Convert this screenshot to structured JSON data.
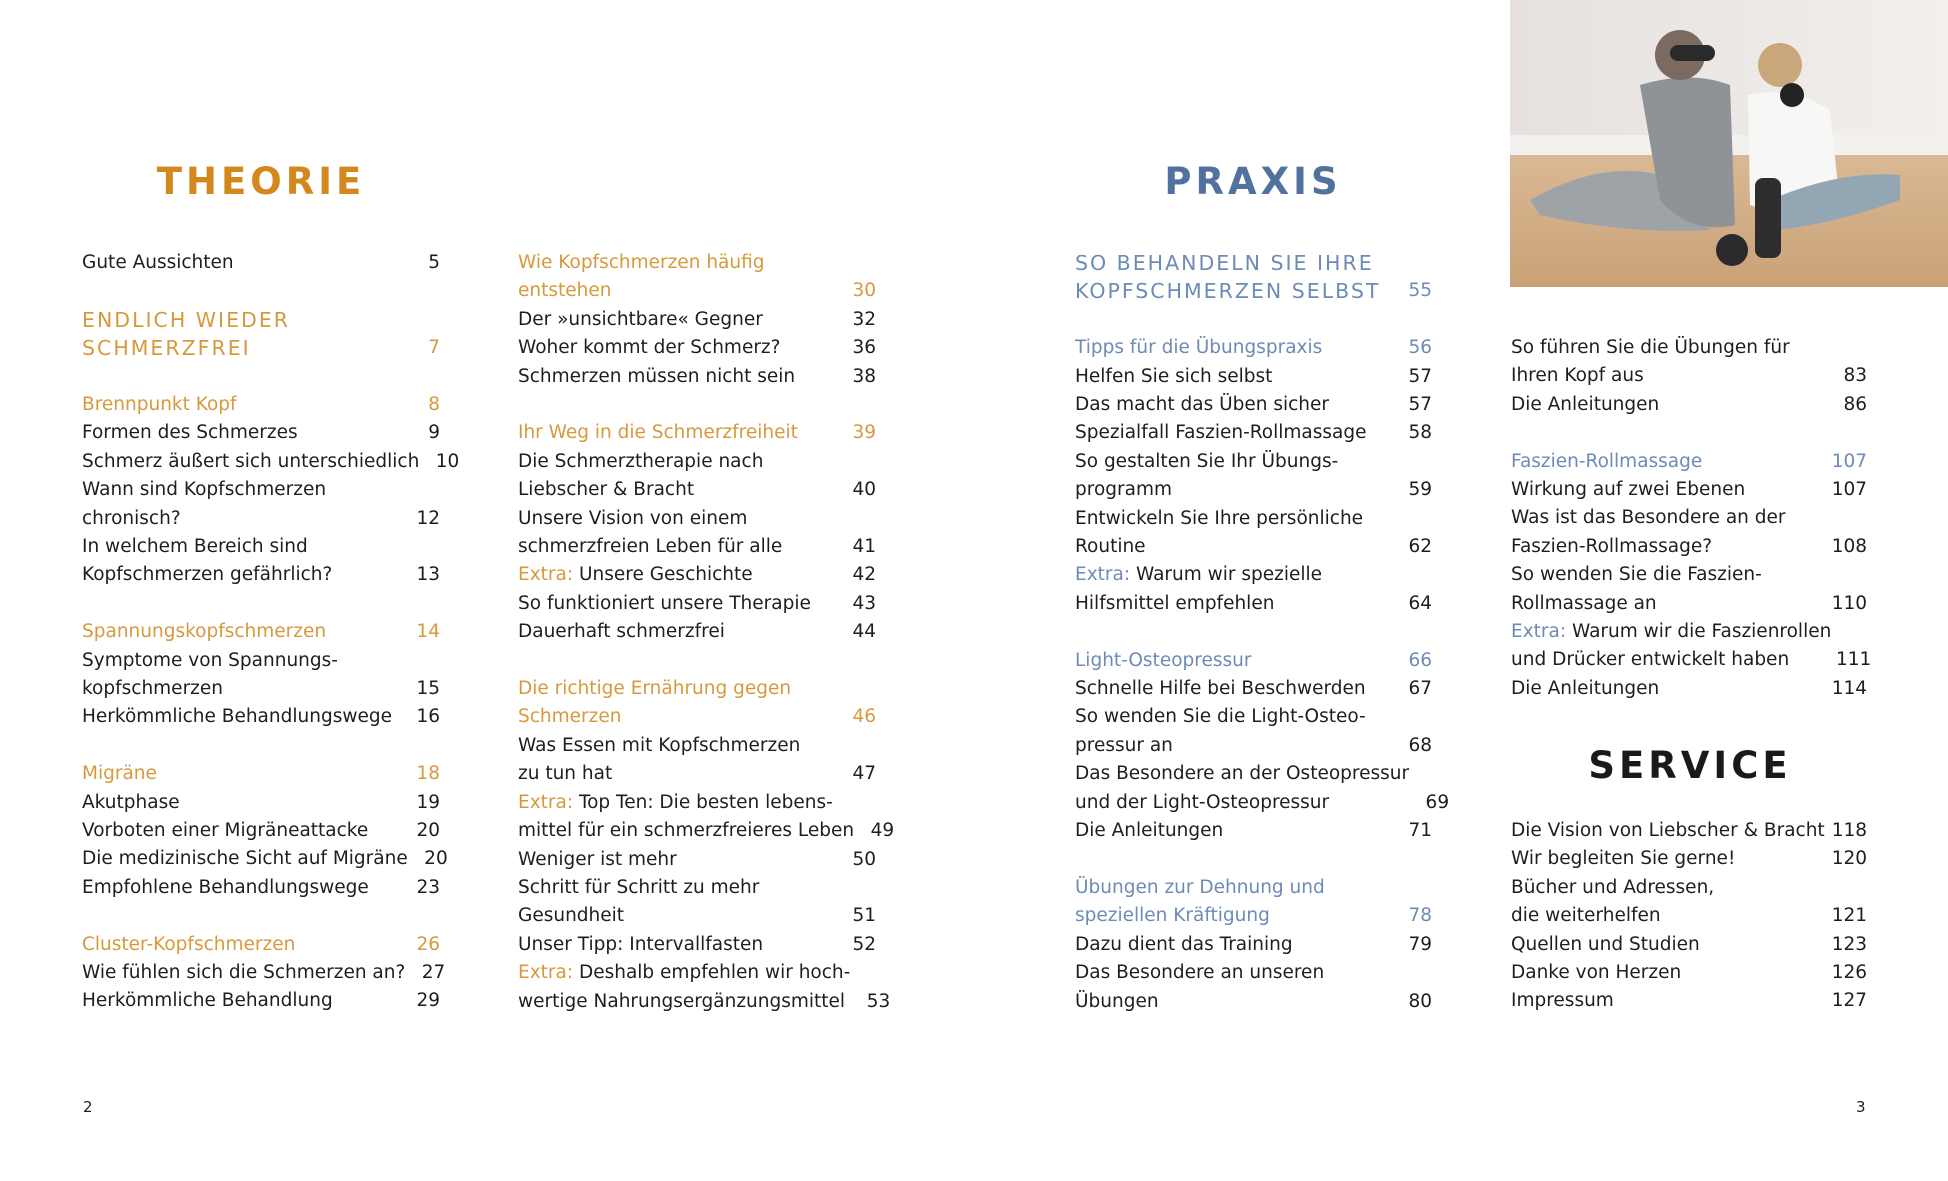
{
  "colors": {
    "theorie": "#d4871c",
    "theorie_section": "#d6993c",
    "praxis": "#51719f",
    "praxis_section": "#6c8bb6",
    "text": "#1e1e1e",
    "service": "#1a1a1a"
  },
  "headings": {
    "theorie": "THEORIE",
    "praxis": "PRAXIS",
    "service": "SERVICE"
  },
  "photo": {
    "icon": "photo-people-fascia-rollers"
  },
  "page_numbers": {
    "left": "2",
    "right": "3"
  },
  "columns": [
    {
      "theme": "theorie",
      "groups": [
        [
          {
            "type": "item",
            "lines": [
              "Gute Aussichten"
            ],
            "page": "5"
          }
        ],
        [
          {
            "type": "chapter",
            "lines": [
              "ENDLICH WIEDER",
              "SCHMERZFREI"
            ],
            "page": "7"
          }
        ],
        [
          {
            "type": "section",
            "lines": [
              "Brennpunkt Kopf"
            ],
            "page": "8"
          },
          {
            "type": "item",
            "lines": [
              "Formen des Schmerzes"
            ],
            "page": "9"
          },
          {
            "type": "item",
            "lines": [
              "Schmerz äußert sich unterschiedlich"
            ],
            "page": "10"
          },
          {
            "type": "item",
            "lines": [
              "Wann sind Kopfschmerzen",
              "chronisch?"
            ],
            "page": "12"
          },
          {
            "type": "item",
            "lines": [
              "In welchem Bereich sind",
              "Kopfschmerzen gefährlich?"
            ],
            "page": "13"
          }
        ],
        [
          {
            "type": "section",
            "lines": [
              "Spannungskopfschmerzen"
            ],
            "page": "14"
          },
          {
            "type": "item",
            "lines": [
              "Symptome von Spannungs-",
              "kopfschmerzen"
            ],
            "page": "15"
          },
          {
            "type": "item",
            "lines": [
              "Herkömmliche Behandlungswege"
            ],
            "page": "16"
          }
        ],
        [
          {
            "type": "section",
            "lines": [
              "Migräne"
            ],
            "page": "18"
          },
          {
            "type": "item",
            "lines": [
              "Akutphase"
            ],
            "page": "19"
          },
          {
            "type": "item",
            "lines": [
              "Vorboten einer Migräneattacke"
            ],
            "page": "20"
          },
          {
            "type": "item",
            "lines": [
              "Die medizinische Sicht auf Migräne"
            ],
            "page": "20"
          },
          {
            "type": "item",
            "lines": [
              "Empfohlene Behandlungswege"
            ],
            "page": "23"
          }
        ],
        [
          {
            "type": "section",
            "lines": [
              "Cluster-Kopfschmerzen"
            ],
            "page": "26"
          },
          {
            "type": "item",
            "lines": [
              "Wie fühlen sich die Schmerzen an?"
            ],
            "page": "27"
          },
          {
            "type": "item",
            "lines": [
              "Herkömmliche Behandlung"
            ],
            "page": "29"
          }
        ]
      ]
    },
    {
      "theme": "theorie",
      "groups": [
        [
          {
            "type": "section",
            "lines": [
              "Wie Kopfschmerzen häufig",
              "entstehen"
            ],
            "page": "30"
          },
          {
            "type": "item",
            "lines": [
              "Der »unsichtbare« Gegner"
            ],
            "page": "32"
          },
          {
            "type": "item",
            "lines": [
              "Woher kommt der Schmerz?"
            ],
            "page": "36"
          },
          {
            "type": "item",
            "lines": [
              "Schmerzen müssen nicht sein"
            ],
            "page": "38"
          }
        ],
        [
          {
            "type": "section",
            "lines": [
              "Ihr Weg in die Schmerzfreiheit"
            ],
            "page": "39"
          },
          {
            "type": "item",
            "lines": [
              "Die Schmerztherapie nach",
              "Liebscher & Bracht"
            ],
            "page": "40"
          },
          {
            "type": "item",
            "lines": [
              "Unsere Vision von einem",
              "schmerzfreien Leben für alle"
            ],
            "page": "41"
          },
          {
            "type": "item",
            "prefix": "Extra:",
            "lines": [
              " Unsere Geschichte"
            ],
            "page": "42"
          },
          {
            "type": "item",
            "lines": [
              "So funktioniert unsere Therapie"
            ],
            "page": "43"
          },
          {
            "type": "item",
            "lines": [
              "Dauerhaft schmerzfrei"
            ],
            "page": "44"
          }
        ],
        [
          {
            "type": "section",
            "lines": [
              "Die richtige Ernährung gegen",
              "Schmerzen"
            ],
            "page": "46"
          },
          {
            "type": "item",
            "lines": [
              "Was Essen mit Kopfschmerzen",
              "zu tun hat"
            ],
            "page": "47"
          },
          {
            "type": "item",
            "prefix": "Extra:",
            "lines": [
              " Top Ten: Die besten lebens-",
              "mittel für ein schmerzfreieres Leben"
            ],
            "page": "49"
          },
          {
            "type": "item",
            "lines": [
              "Weniger ist mehr"
            ],
            "page": "50"
          },
          {
            "type": "item",
            "lines": [
              "Schritt für Schritt zu mehr",
              "Gesundheit"
            ],
            "page": "51"
          },
          {
            "type": "item",
            "lines": [
              "Unser Tipp: Intervallfasten"
            ],
            "page": "52"
          },
          {
            "type": "item",
            "prefix": "Extra:",
            "lines": [
              " Deshalb empfehlen wir hoch-",
              "wertige Nahrungsergänzungsmittel"
            ],
            "page": "53"
          }
        ]
      ]
    },
    {
      "theme": "praxis",
      "groups": [
        [
          {
            "type": "chapter",
            "lines": [
              "SO BEHANDELN SIE IHRE",
              "KOPFSCHMERZEN SELBST"
            ],
            "page": "55"
          }
        ],
        [
          {
            "type": "section",
            "lines": [
              "Tipps für die Übungspraxis"
            ],
            "page": "56"
          },
          {
            "type": "item",
            "lines": [
              "Helfen Sie sich selbst"
            ],
            "page": "57"
          },
          {
            "type": "item",
            "lines": [
              "Das macht das Üben sicher"
            ],
            "page": "57"
          },
          {
            "type": "item",
            "lines": [
              "Spezialfall Faszien-Rollmassage"
            ],
            "page": "58"
          },
          {
            "type": "item",
            "lines": [
              "So gestalten Sie Ihr Übungs-",
              "programm"
            ],
            "page": "59"
          },
          {
            "type": "item",
            "lines": [
              "Entwickeln Sie Ihre persönliche",
              "Routine"
            ],
            "page": "62"
          },
          {
            "type": "item",
            "prefix": "Extra:",
            "lines": [
              " Warum wir spezielle",
              "Hilfsmittel empfehlen"
            ],
            "page": "64"
          }
        ],
        [
          {
            "type": "section",
            "lines": [
              "Light-Osteopressur"
            ],
            "page": "66"
          },
          {
            "type": "item",
            "lines": [
              "Schnelle Hilfe bei Beschwerden"
            ],
            "page": "67"
          },
          {
            "type": "item",
            "lines": [
              "So wenden Sie die Light-Osteo-",
              "pressur an"
            ],
            "page": "68"
          },
          {
            "type": "item",
            "lines": [
              "Das Besondere an der Osteopressur",
              "und der Light-Osteopressur"
            ],
            "page": "69"
          },
          {
            "type": "item",
            "lines": [
              "Die Anleitungen"
            ],
            "page": "71"
          }
        ],
        [
          {
            "type": "section",
            "lines": [
              "Übungen zur Dehnung und",
              "speziellen Kräftigung"
            ],
            "page": "78"
          },
          {
            "type": "item",
            "lines": [
              "Dazu dient das Training"
            ],
            "page": "79"
          },
          {
            "type": "item",
            "lines": [
              "Das Besondere an unseren",
              "Übungen"
            ],
            "page": "80"
          }
        ]
      ]
    },
    {
      "theme": "praxis",
      "groups": [
        [
          {
            "type": "item",
            "lines": [
              "So führen Sie die Übungen für",
              "Ihren Kopf aus"
            ],
            "page": "83"
          },
          {
            "type": "item",
            "lines": [
              "Die Anleitungen"
            ],
            "page": "86"
          }
        ],
        [
          {
            "type": "section",
            "lines": [
              "Faszien-Rollmassage"
            ],
            "page": "107"
          },
          {
            "type": "item",
            "lines": [
              "Wirkung auf zwei Ebenen"
            ],
            "page": "107"
          },
          {
            "type": "item",
            "lines": [
              "Was ist das Besondere an der",
              "Faszien-Rollmassage?"
            ],
            "page": "108"
          },
          {
            "type": "item",
            "lines": [
              "So wenden Sie die Faszien-",
              "Rollmassage an"
            ],
            "page": "110"
          },
          {
            "type": "item",
            "prefix": "Extra:",
            "lines": [
              " Warum wir die Faszienrollen",
              "und Drücker entwickelt haben"
            ],
            "page": "111"
          },
          {
            "type": "item",
            "lines": [
              "Die Anleitungen"
            ],
            "page": "114"
          }
        ]
      ]
    },
    {
      "theme": "service",
      "groups": [
        [
          {
            "type": "item",
            "lines": [
              "Die Vision von Liebscher & Bracht"
            ],
            "page": "118"
          },
          {
            "type": "item",
            "lines": [
              "Wir begleiten Sie gerne!"
            ],
            "page": "120"
          },
          {
            "type": "item",
            "lines": [
              "Bücher und Adressen,",
              "die weiterhelfen"
            ],
            "page": "121"
          },
          {
            "type": "item",
            "lines": [
              "Quellen und Studien"
            ],
            "page": "123"
          },
          {
            "type": "item",
            "lines": [
              "Danke von Herzen"
            ],
            "page": "126"
          },
          {
            "type": "item",
            "lines": [
              "Impressum"
            ],
            "page": "127"
          }
        ]
      ]
    }
  ]
}
